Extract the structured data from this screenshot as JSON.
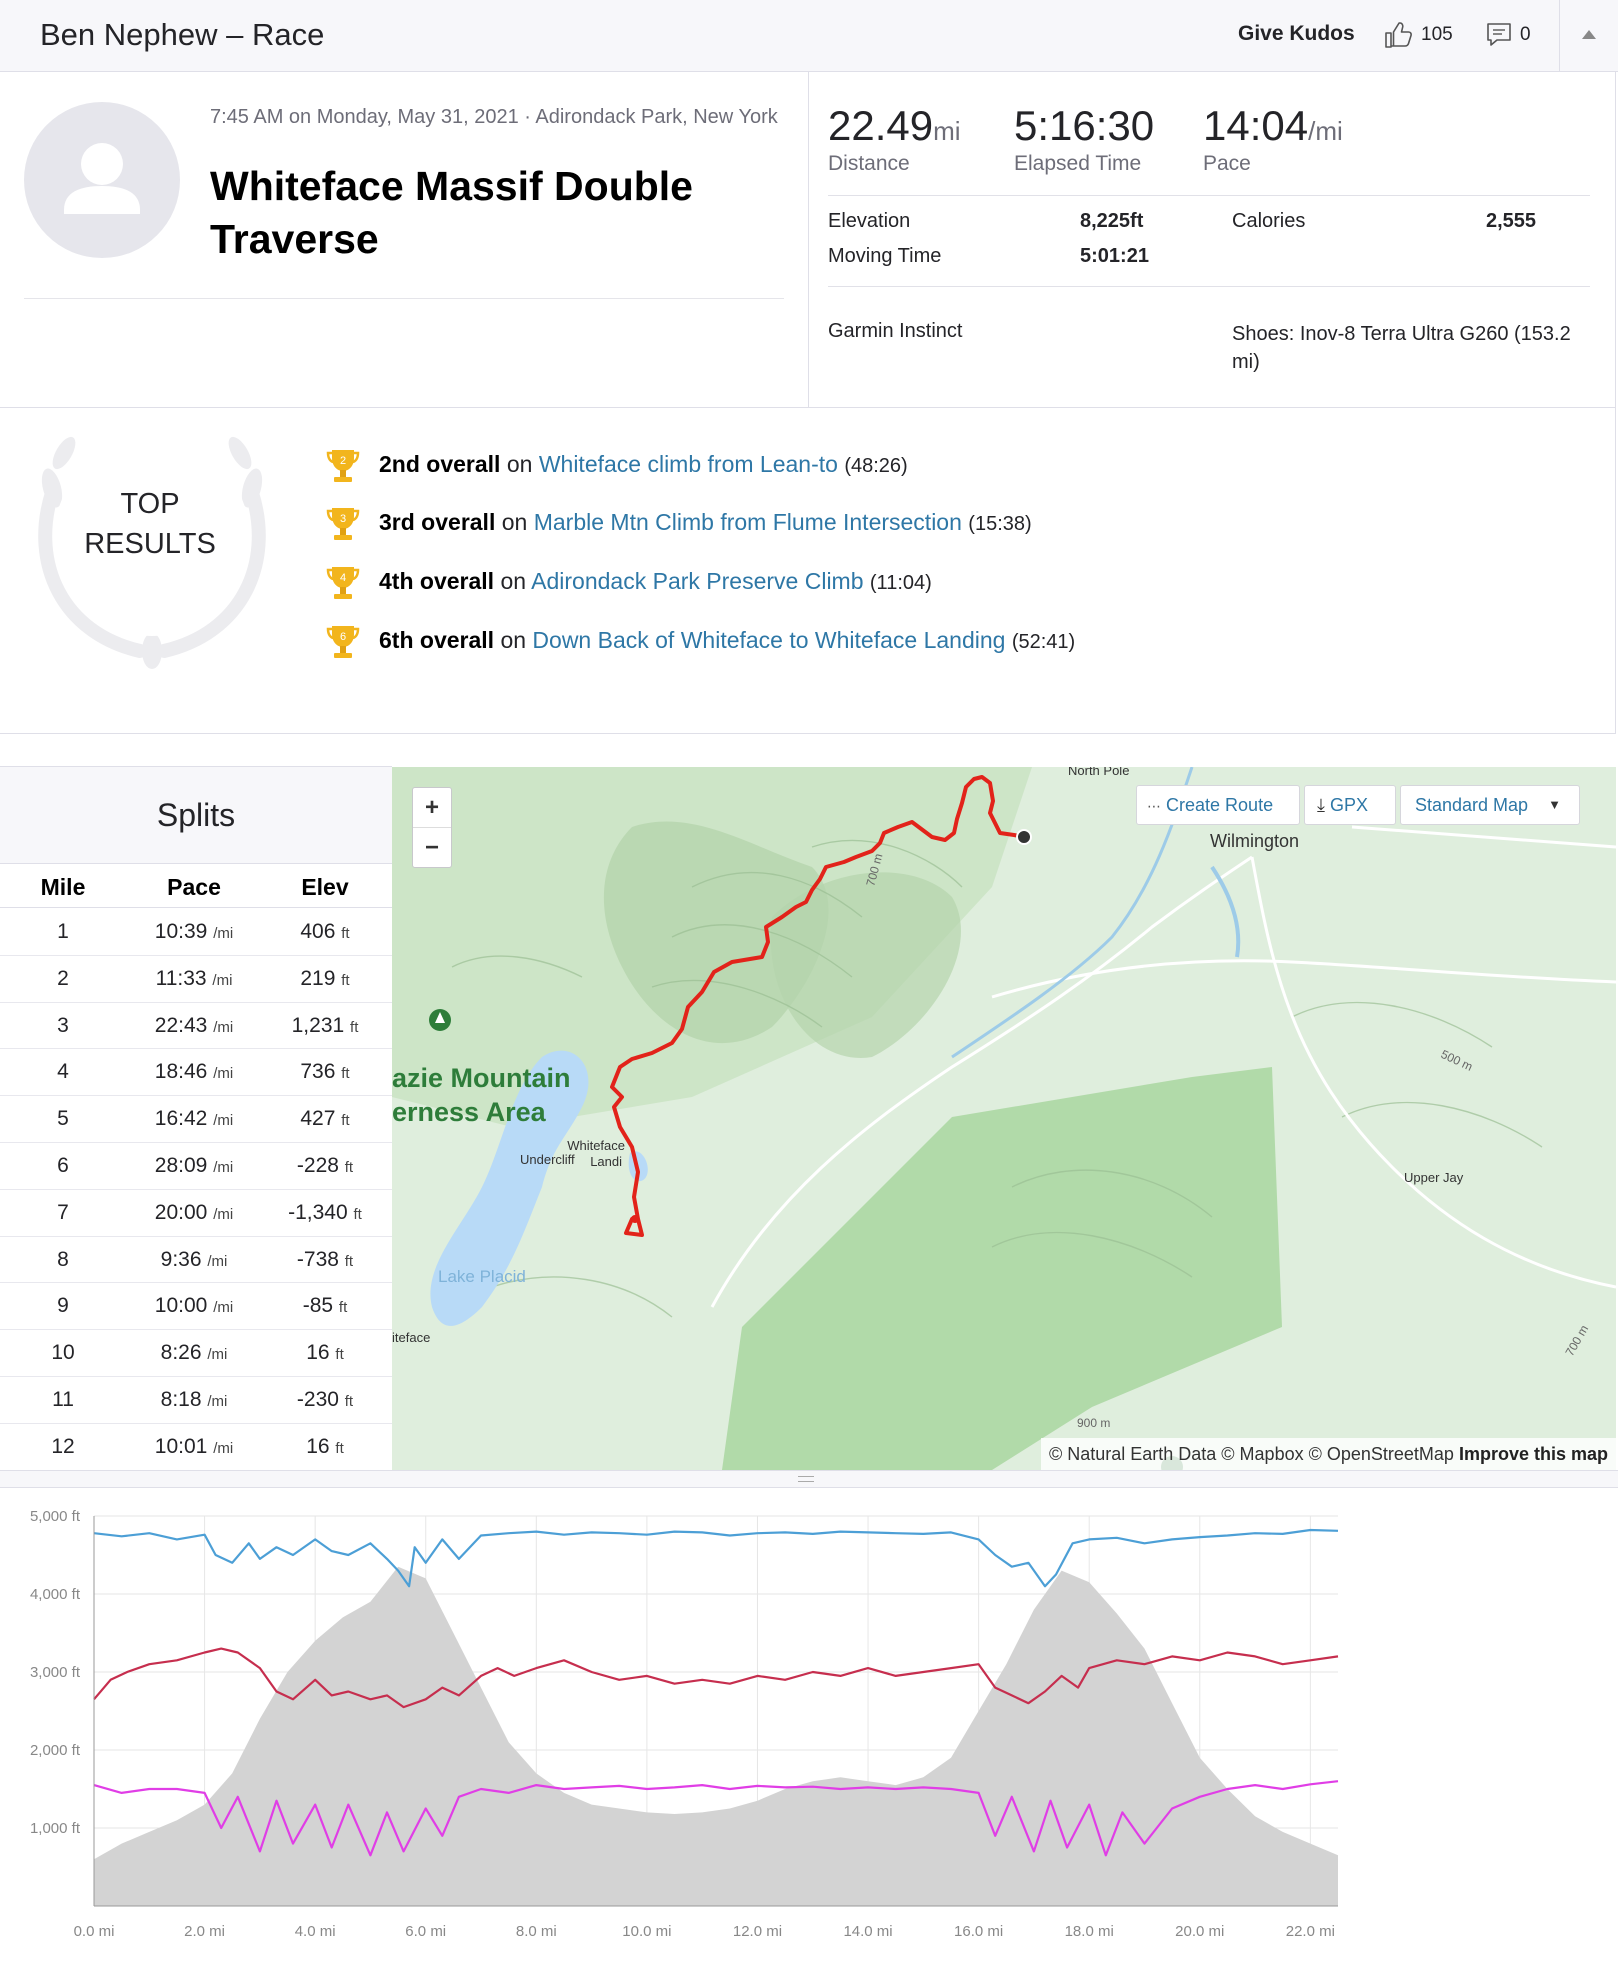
{
  "header": {
    "title": "Ben Nephew – Race",
    "kudos_label": "Give Kudos",
    "kudos_count": "105",
    "comment_count": "0"
  },
  "activity": {
    "meta": "7:45 AM on Monday, May 31, 2021 · Adirondack Park, New York",
    "title": "Whiteface Massif Double Traverse"
  },
  "stats": {
    "distance": {
      "value": "22.49",
      "unit": "mi",
      "label": "Distance"
    },
    "elapsed": {
      "value": "5:16:30",
      "label": "Elapsed Time"
    },
    "pace": {
      "value": "14:04",
      "unit": "/mi",
      "label": "Pace"
    },
    "elevation": {
      "label": "Elevation",
      "value": "8,225ft"
    },
    "moving": {
      "label": "Moving Time",
      "value": "5:01:21"
    },
    "calories": {
      "label": "Calories",
      "value": "2,555"
    },
    "device": "Garmin Instinct",
    "shoes": "Shoes: Inov-8 Terra Ultra G260 (153.2 mi)"
  },
  "top_results": {
    "label_line1": "TOP",
    "label_line2": "RESULTS",
    "items": [
      {
        "place": "2",
        "rank": "2nd overall",
        "on": "on",
        "segment": "Whiteface climb from Lean-to",
        "time": "(48:26)"
      },
      {
        "place": "3",
        "rank": "3rd overall",
        "on": "on",
        "segment": "Marble Mtn Climb from Flume Intersection",
        "time": "(15:38)"
      },
      {
        "place": "4",
        "rank": "4th overall",
        "on": "on",
        "segment": "Adirondack Park Preserve Climb",
        "time": "(11:04)"
      },
      {
        "place": "6",
        "rank": "6th overall",
        "on": "on",
        "segment": "Down Back of Whiteface to Whiteface Landing",
        "time": "(52:41)"
      }
    ]
  },
  "splits": {
    "title": "Splits",
    "headers": [
      "Mile",
      "Pace",
      "Elev"
    ],
    "pace_unit": "/mi",
    "elev_unit": "ft",
    "rows": [
      {
        "mile": "1",
        "pace": "10:39",
        "elev": "406"
      },
      {
        "mile": "2",
        "pace": "11:33",
        "elev": "219"
      },
      {
        "mile": "3",
        "pace": "22:43",
        "elev": "1,231"
      },
      {
        "mile": "4",
        "pace": "18:46",
        "elev": "736"
      },
      {
        "mile": "5",
        "pace": "16:42",
        "elev": "427"
      },
      {
        "mile": "6",
        "pace": "28:09",
        "elev": "-228"
      },
      {
        "mile": "7",
        "pace": "20:00",
        "elev": "-1,340"
      },
      {
        "mile": "8",
        "pace": "9:36",
        "elev": "-738"
      },
      {
        "mile": "9",
        "pace": "10:00",
        "elev": "-85"
      },
      {
        "mile": "10",
        "pace": "8:26",
        "elev": "16"
      },
      {
        "mile": "11",
        "pace": "8:18",
        "elev": "-230"
      },
      {
        "mile": "12",
        "pace": "10:01",
        "elev": "16"
      }
    ]
  },
  "map": {
    "zoom_in": "+",
    "zoom_out": "−",
    "create_route": "Create Route",
    "gpx": "GPX",
    "map_style": "Standard Map",
    "labels": {
      "north_pole": "North Pole",
      "wilmington": "Wilmington",
      "wilderness_1": "azie Mountain",
      "wilderness_2": "erness Area",
      "undercliff": "Undercliff",
      "whiteface_landing_1": "Whiteface",
      "whiteface_landing_2": "Landi",
      "lake_placid": "Lake Placid",
      "upper_jay": "Upper Jay",
      "iteface": "iteface",
      "c700a": "700 m",
      "c500": "500 m",
      "c700b": "700 m",
      "c900": "900 m"
    },
    "attribution": "© Natural Earth Data © Mapbox © OpenStreetMap",
    "improve": "Improve this map",
    "colors": {
      "route": "#e2231a",
      "land": "#dfeedd",
      "forest": "#a9d6a0",
      "water": "#b8daf7"
    }
  },
  "chart_data": {
    "type": "line",
    "x_tick_labels": [
      "0.0 mi",
      "2.0 mi",
      "4.0 mi",
      "6.0 mi",
      "8.0 mi",
      "10.0 mi",
      "12.0 mi",
      "14.0 mi",
      "16.0 mi",
      "18.0 mi",
      "20.0 mi",
      "22.0 mi"
    ],
    "y_tick_labels": [
      "1,000 ft",
      "2,000 ft",
      "3,000 ft",
      "4,000 ft",
      "5,000 ft"
    ],
    "xlim": [
      0,
      22.5
    ],
    "ylim": [
      0,
      5000
    ],
    "x_unit": "mi",
    "y_unit": "ft",
    "grid": true,
    "elevation_area": {
      "color": "#d3d3d3",
      "x": [
        0,
        0.5,
        1,
        1.5,
        2,
        2.5,
        3,
        3.5,
        4,
        4.5,
        5,
        5.5,
        6,
        6.5,
        7,
        7.5,
        8,
        8.5,
        9,
        9.5,
        10,
        10.5,
        11,
        11.5,
        12,
        12.5,
        13,
        13.5,
        14,
        14.5,
        15,
        15.5,
        16,
        16.5,
        17,
        17.5,
        18,
        18.5,
        19,
        19.5,
        20,
        20.5,
        21,
        21.5,
        22,
        22.5
      ],
      "y": [
        600,
        800,
        950,
        1100,
        1300,
        1700,
        2400,
        3000,
        3400,
        3700,
        3900,
        4350,
        4200,
        3500,
        2800,
        2100,
        1700,
        1450,
        1300,
        1250,
        1200,
        1180,
        1200,
        1250,
        1350,
        1500,
        1600,
        1650,
        1600,
        1550,
        1650,
        1900,
        2500,
        3100,
        3800,
        4300,
        4150,
        3750,
        3300,
        2600,
        1900,
        1500,
        1150,
        950,
        800,
        650
      ]
    },
    "series": [
      {
        "color": "#4c9fd6",
        "x": [
          0,
          0.5,
          1,
          1.5,
          2,
          2.2,
          2.5,
          2.8,
          3,
          3.3,
          3.6,
          4,
          4.3,
          4.6,
          5,
          5.3,
          5.5,
          5.7,
          5.8,
          6,
          6.3,
          6.6,
          7,
          7.5,
          8,
          8.5,
          9,
          9.5,
          10,
          10.5,
          11,
          11.5,
          12,
          12.5,
          13,
          13.5,
          14,
          14.5,
          15,
          15.5,
          16,
          16.3,
          16.6,
          16.9,
          17.2,
          17.4,
          17.7,
          18,
          18.5,
          19,
          19.5,
          20,
          20.5,
          21,
          21.5,
          22,
          22.5
        ],
        "y": [
          4780,
          4740,
          4780,
          4700,
          4760,
          4500,
          4400,
          4650,
          4450,
          4600,
          4500,
          4700,
          4550,
          4500,
          4650,
          4450,
          4300,
          4100,
          4600,
          4400,
          4700,
          4450,
          4750,
          4780,
          4800,
          4760,
          4790,
          4780,
          4760,
          4800,
          4790,
          4750,
          4780,
          4790,
          4770,
          4800,
          4790,
          4780,
          4770,
          4790,
          4700,
          4500,
          4350,
          4400,
          4100,
          4250,
          4650,
          4700,
          4720,
          4650,
          4700,
          4730,
          4750,
          4780,
          4770,
          4820,
          4810
        ]
      },
      {
        "color": "#c62e4e",
        "x": [
          0,
          0.3,
          0.6,
          1,
          1.5,
          2,
          2.3,
          2.6,
          3,
          3.3,
          3.6,
          4,
          4.3,
          4.6,
          5,
          5.3,
          5.6,
          6,
          6.3,
          6.6,
          7,
          7.3,
          7.6,
          8,
          8.5,
          9,
          9.5,
          10,
          10.5,
          11,
          11.5,
          12,
          12.5,
          13,
          13.5,
          14,
          14.5,
          15,
          15.5,
          16,
          16.3,
          16.6,
          16.9,
          17.2,
          17.5,
          17.8,
          18,
          18.5,
          19,
          19.5,
          20,
          20.5,
          21,
          21.5,
          22,
          22.5
        ],
        "y": [
          2650,
          2900,
          3000,
          3100,
          3150,
          3250,
          3300,
          3250,
          3050,
          2750,
          2650,
          2900,
          2700,
          2750,
          2650,
          2700,
          2550,
          2650,
          2800,
          2700,
          2950,
          3050,
          2950,
          3050,
          3150,
          3000,
          2900,
          2950,
          2850,
          2900,
          2850,
          2950,
          2900,
          3000,
          2950,
          3050,
          2950,
          3000,
          3050,
          3100,
          2800,
          2700,
          2600,
          2750,
          2950,
          2800,
          3050,
          3150,
          3100,
          3200,
          3150,
          3250,
          3200,
          3100,
          3150,
          3200
        ]
      },
      {
        "color": "#e03ee6",
        "x": [
          0,
          0.5,
          1,
          1.5,
          2,
          2.3,
          2.6,
          3,
          3.3,
          3.6,
          4,
          4.3,
          4.6,
          5,
          5.3,
          5.6,
          6,
          6.3,
          6.6,
          7,
          7.5,
          8,
          8.5,
          9,
          9.5,
          10,
          10.5,
          11,
          11.5,
          12,
          12.5,
          13,
          13.5,
          14,
          14.5,
          15,
          15.5,
          16,
          16.3,
          16.6,
          17,
          17.3,
          17.6,
          18,
          18.3,
          18.6,
          19,
          19.5,
          20,
          20.5,
          21,
          21.5,
          22,
          22.5
        ],
        "y": [
          1550,
          1450,
          1500,
          1500,
          1450,
          1000,
          1400,
          700,
          1350,
          800,
          1300,
          750,
          1300,
          650,
          1200,
          700,
          1250,
          900,
          1400,
          1500,
          1450,
          1550,
          1500,
          1520,
          1540,
          1500,
          1520,
          1550,
          1500,
          1540,
          1520,
          1530,
          1500,
          1520,
          1500,
          1520,
          1500,
          1450,
          900,
          1400,
          700,
          1350,
          750,
          1300,
          650,
          1200,
          800,
          1250,
          1400,
          1500,
          1550,
          1500,
          1560,
          1600
        ]
      }
    ]
  }
}
